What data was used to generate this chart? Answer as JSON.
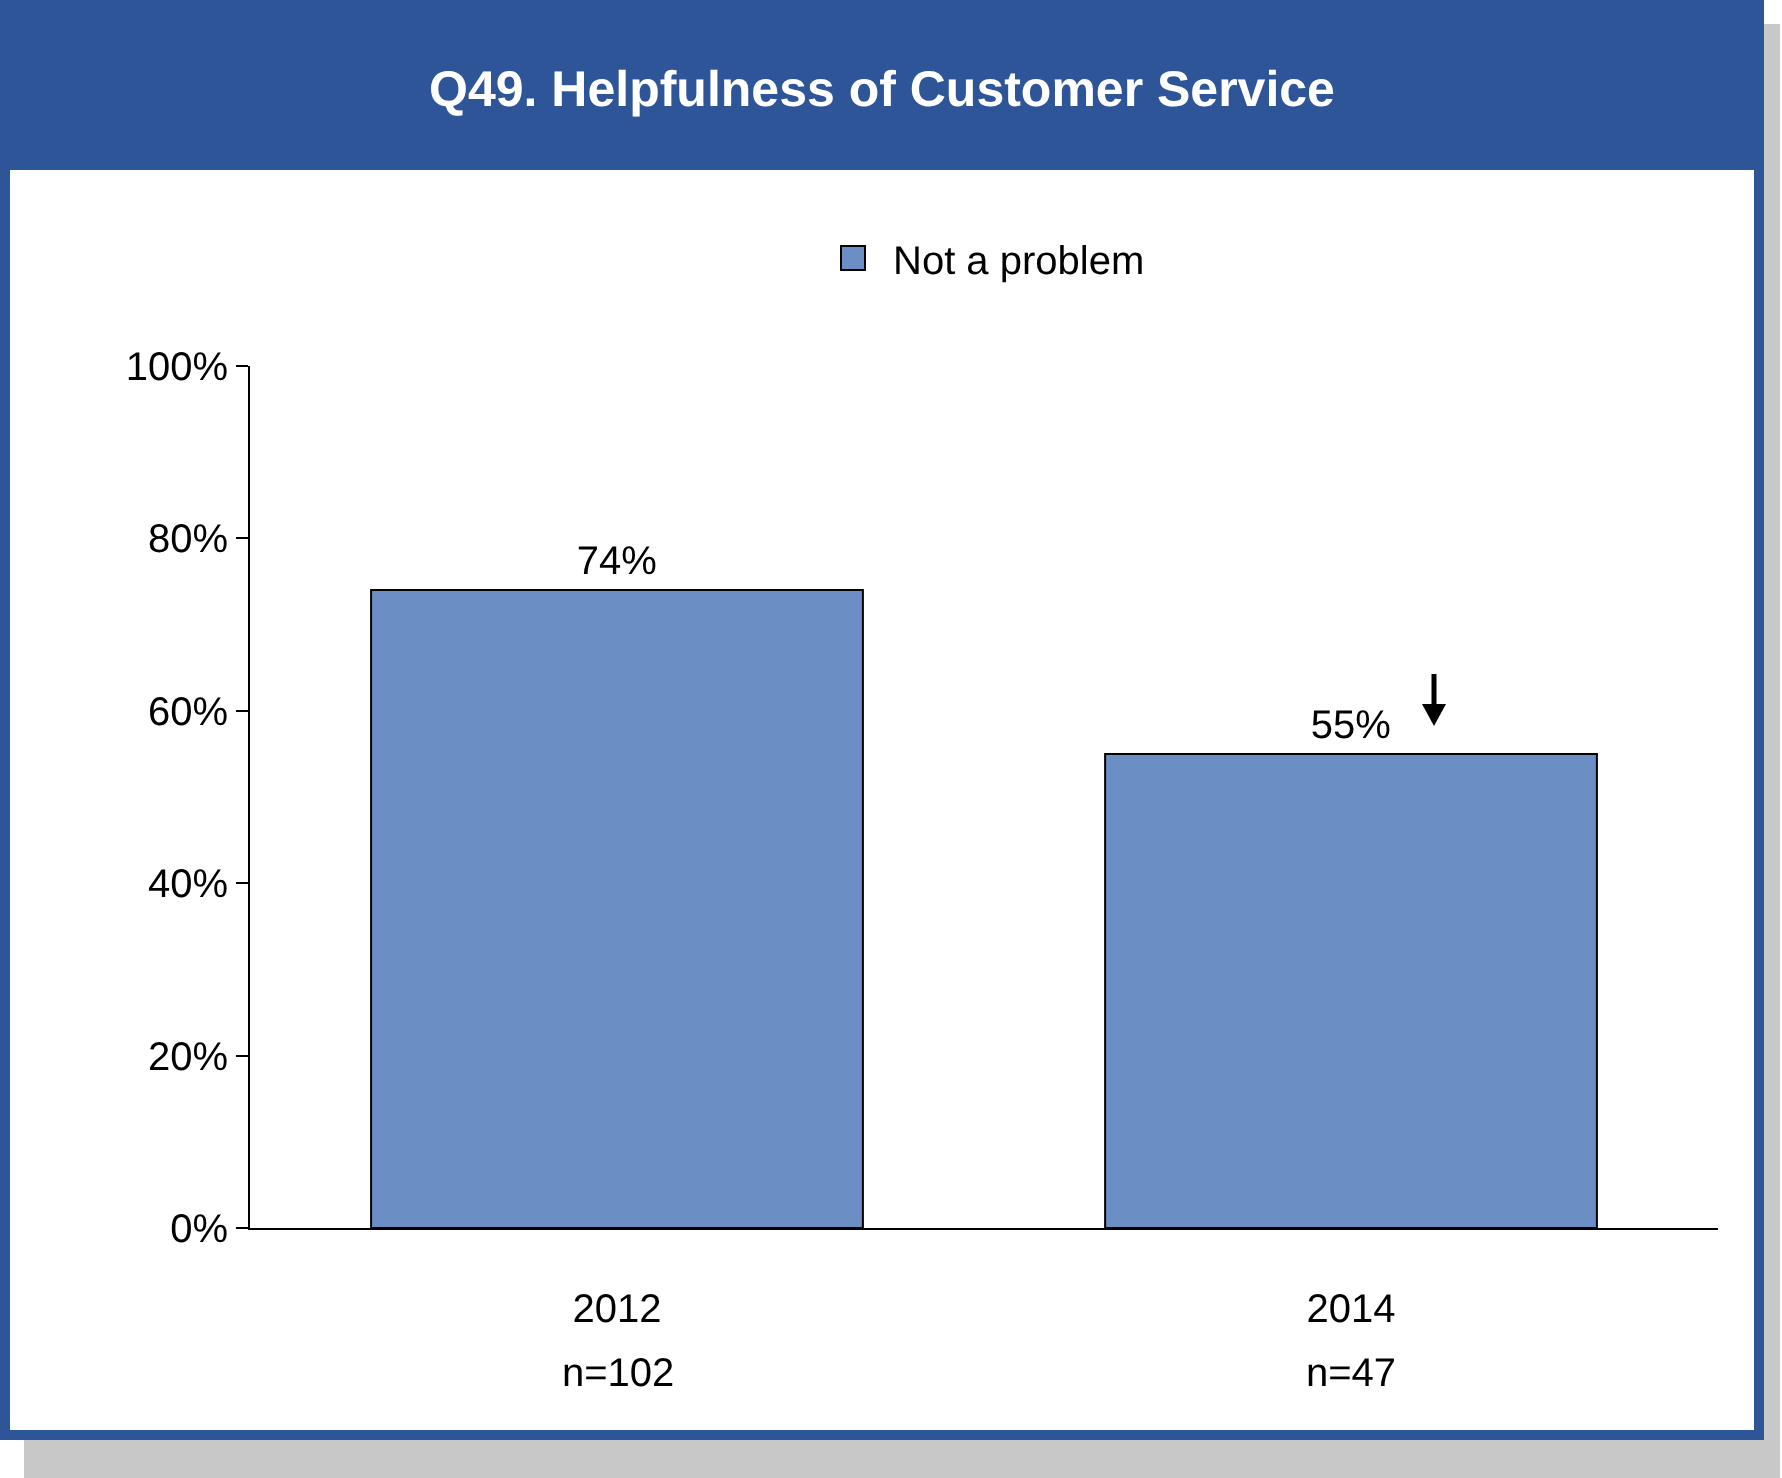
{
  "chart_data": {
    "type": "bar",
    "title": "Q49.  Helpfulness of Customer Service",
    "categories": [
      "2012",
      "2014"
    ],
    "series": [
      {
        "name": "Not a problem",
        "color": "#6b8ec4",
        "values": [
          74,
          55
        ],
        "value_labels": [
          "74%",
          "55%"
        ]
      }
    ],
    "ylim": [
      0,
      100
    ],
    "yticks": [
      {
        "value": 0,
        "label": "0%"
      },
      {
        "value": 20,
        "label": "20%"
      },
      {
        "value": 40,
        "label": "40%"
      },
      {
        "value": 60,
        "label": "60%"
      },
      {
        "value": 80,
        "label": "80%"
      },
      {
        "value": 100,
        "label": "100%"
      }
    ],
    "annotations": [
      "n=102",
      "n=47"
    ],
    "grid": false,
    "legend": "top"
  }
}
